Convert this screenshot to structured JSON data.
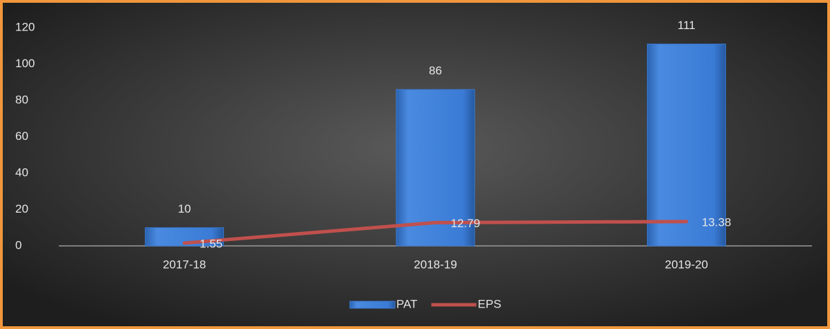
{
  "chart_data": {
    "type": "bar",
    "categories": [
      "2017-18",
      "2018-19",
      "2019-20"
    ],
    "series": [
      {
        "name": "PAT",
        "type": "bar",
        "color": "#3a7bd5",
        "values": [
          10,
          86,
          111
        ]
      },
      {
        "name": "EPS",
        "type": "line",
        "color": "#c0504d",
        "values": [
          1.55,
          12.79,
          13.38
        ]
      }
    ],
    "ylim": [
      0,
      120
    ],
    "yticks": [
      0,
      20,
      40,
      60,
      80,
      100,
      120
    ],
    "grid": false,
    "legend": "bottom"
  }
}
